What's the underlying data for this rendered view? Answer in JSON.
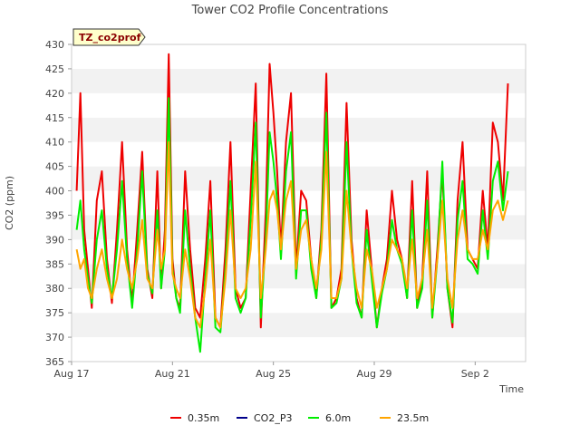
{
  "chart_data": {
    "type": "line",
    "title": "Tower CO2 Profile Concentrations",
    "xlabel": "Time",
    "ylabel": "CO2 (ppm)",
    "badge": "TZ_co2prof",
    "ylim": [
      365,
      430
    ],
    "yticks": [
      365,
      370,
      375,
      380,
      385,
      390,
      395,
      400,
      405,
      410,
      415,
      420,
      425,
      430
    ],
    "xlim": [
      0,
      18
    ],
    "xticks": [
      {
        "day": 0,
        "label": "Aug 17"
      },
      {
        "day": 4,
        "label": "Aug 21"
      },
      {
        "day": 8,
        "label": "Aug 25"
      },
      {
        "day": 12,
        "label": "Aug 29"
      },
      {
        "day": 16,
        "label": "Sep 2"
      }
    ],
    "grid": "horizontal bands",
    "legend_position": "bottom-center",
    "series": [
      {
        "name": "0.35m",
        "color": "#ee0000",
        "x": [
          0.2,
          0.35,
          0.5,
          0.65,
          0.8,
          1.0,
          1.2,
          1.4,
          1.6,
          1.8,
          2.0,
          2.2,
          2.4,
          2.6,
          2.8,
          3.0,
          3.2,
          3.4,
          3.55,
          3.7,
          3.85,
          4.0,
          4.15,
          4.3,
          4.5,
          4.7,
          4.9,
          5.1,
          5.3,
          5.5,
          5.7,
          5.9,
          6.1,
          6.3,
          6.5,
          6.7,
          6.9,
          7.1,
          7.3,
          7.5,
          7.7,
          7.85,
          8.0,
          8.15,
          8.3,
          8.5,
          8.7,
          8.9,
          9.1,
          9.3,
          9.5,
          9.7,
          9.9,
          10.1,
          10.3,
          10.5,
          10.7,
          10.9,
          11.1,
          11.3,
          11.5,
          11.7,
          11.9,
          12.1,
          12.3,
          12.5,
          12.7,
          12.9,
          13.1,
          13.3,
          13.5,
          13.7,
          13.9,
          14.1,
          14.3,
          14.5,
          14.7,
          14.9,
          15.1,
          15.3,
          15.5,
          15.7,
          15.9,
          16.1,
          16.3,
          16.5,
          16.7,
          16.9,
          17.1,
          17.3
        ],
        "values": [
          400,
          420,
          392,
          384,
          376,
          398,
          404,
          386,
          377,
          392,
          410,
          388,
          377,
          392,
          408,
          384,
          378,
          404,
          380,
          392,
          428,
          386,
          378,
          376,
          404,
          388,
          376,
          374,
          386,
          402,
          374,
          372,
          388,
          410,
          380,
          376,
          378,
          400,
          422,
          372,
          396,
          426,
          416,
          404,
          388,
          410,
          420,
          384,
          400,
          398,
          386,
          378,
          392,
          424,
          376,
          378,
          384,
          418,
          390,
          378,
          374,
          396,
          384,
          372,
          380,
          386,
          400,
          390,
          386,
          378,
          402,
          376,
          382,
          404,
          374,
          388,
          404,
          380,
          372,
          398,
          410,
          388,
          386,
          384,
          400,
          388,
          414,
          410,
          398,
          422
        ]
      },
      {
        "name": "CO2_P3",
        "color": "#00008b",
        "x": [],
        "values": []
      },
      {
        "name": "6.0m",
        "color": "#00ee00",
        "x": [
          0.2,
          0.35,
          0.5,
          0.65,
          0.8,
          1.0,
          1.2,
          1.4,
          1.6,
          1.8,
          2.0,
          2.2,
          2.4,
          2.6,
          2.8,
          3.0,
          3.2,
          3.4,
          3.55,
          3.7,
          3.85,
          4.0,
          4.15,
          4.3,
          4.5,
          4.7,
          4.9,
          5.1,
          5.3,
          5.5,
          5.7,
          5.9,
          6.1,
          6.3,
          6.5,
          6.7,
          6.9,
          7.1,
          7.3,
          7.5,
          7.7,
          7.85,
          8.0,
          8.15,
          8.3,
          8.5,
          8.7,
          8.9,
          9.1,
          9.3,
          9.5,
          9.7,
          9.9,
          10.1,
          10.3,
          10.5,
          10.7,
          10.9,
          11.1,
          11.3,
          11.5,
          11.7,
          11.9,
          12.1,
          12.3,
          12.5,
          12.7,
          12.9,
          13.1,
          13.3,
          13.5,
          13.7,
          13.9,
          14.1,
          14.3,
          14.5,
          14.7,
          14.9,
          15.1,
          15.3,
          15.5,
          15.7,
          15.9,
          16.1,
          16.3,
          16.5,
          16.7,
          16.9,
          17.1,
          17.3
        ],
        "values": [
          392,
          398,
          388,
          382,
          377,
          390,
          396,
          384,
          378,
          388,
          402,
          386,
          376,
          388,
          404,
          383,
          379,
          396,
          380,
          388,
          419,
          384,
          378,
          375,
          396,
          384,
          374,
          367,
          382,
          396,
          372,
          371,
          384,
          402,
          378,
          375,
          378,
          394,
          414,
          374,
          390,
          412,
          406,
          398,
          386,
          404,
          412,
          382,
          396,
          396,
          384,
          378,
          390,
          416,
          376,
          377,
          382,
          410,
          388,
          377,
          374,
          392,
          382,
          372,
          379,
          384,
          394,
          388,
          385,
          378,
          396,
          376,
          380,
          398,
          374,
          386,
          406,
          380,
          373,
          394,
          402,
          386,
          385,
          383,
          396,
          386,
          402,
          406,
          396,
          404
        ]
      },
      {
        "name": "23.5m",
        "color": "#ffa500",
        "x": [
          0.2,
          0.35,
          0.5,
          0.65,
          0.8,
          1.0,
          1.2,
          1.4,
          1.6,
          1.8,
          2.0,
          2.2,
          2.4,
          2.6,
          2.8,
          3.0,
          3.2,
          3.4,
          3.55,
          3.7,
          3.85,
          4.0,
          4.15,
          4.3,
          4.5,
          4.7,
          4.9,
          5.1,
          5.3,
          5.5,
          5.7,
          5.9,
          6.1,
          6.3,
          6.5,
          6.7,
          6.9,
          7.1,
          7.3,
          7.5,
          7.7,
          7.85,
          8.0,
          8.15,
          8.3,
          8.5,
          8.7,
          8.9,
          9.1,
          9.3,
          9.5,
          9.7,
          9.9,
          10.1,
          10.3,
          10.5,
          10.7,
          10.9,
          11.1,
          11.3,
          11.5,
          11.7,
          11.9,
          12.1,
          12.3,
          12.5,
          12.7,
          12.9,
          13.1,
          13.3,
          13.5,
          13.7,
          13.9,
          14.1,
          14.3,
          14.5,
          14.7,
          14.9,
          15.1,
          15.3,
          15.5,
          15.7,
          15.9,
          16.1,
          16.3,
          16.5,
          16.7,
          16.9,
          17.1,
          17.3
        ],
        "values": [
          388,
          384,
          386,
          380,
          378,
          384,
          388,
          382,
          378,
          382,
          390,
          384,
          380,
          386,
          394,
          382,
          380,
          392,
          384,
          388,
          410,
          383,
          380,
          378,
          388,
          382,
          374,
          372,
          380,
          390,
          374,
          372,
          382,
          396,
          380,
          378,
          380,
          388,
          406,
          378,
          388,
          398,
          400,
          396,
          388,
          398,
          402,
          384,
          392,
          394,
          386,
          380,
          388,
          408,
          378,
          378,
          382,
          400,
          388,
          380,
          376,
          388,
          384,
          376,
          380,
          384,
          390,
          388,
          386,
          380,
          390,
          378,
          382,
          392,
          376,
          386,
          398,
          382,
          376,
          390,
          396,
          388,
          386,
          386,
          392,
          388,
          396,
          398,
          394,
          398
        ]
      }
    ]
  }
}
